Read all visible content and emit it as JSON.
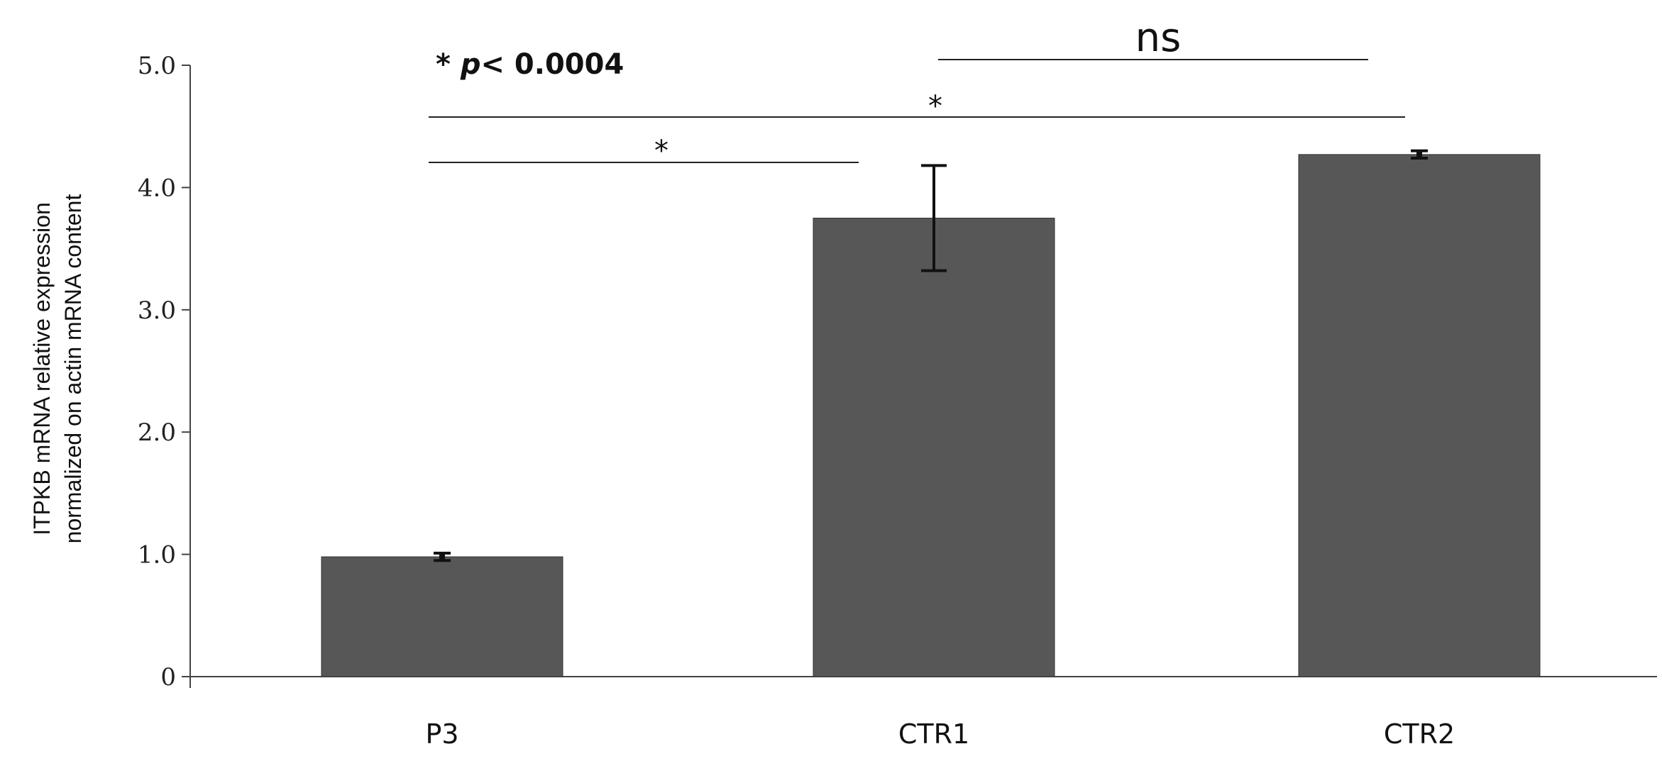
{
  "chart_data": {
    "type": "bar",
    "categories": [
      "P3",
      "CTR1",
      "CTR2"
    ],
    "values": [
      0.98,
      3.75,
      4.27
    ],
    "errors": [
      0.03,
      0.43,
      0.03
    ],
    "ylabel_lines": [
      "ITPKB mRNA relative expression",
      "normalized on actin mRNA content"
    ],
    "ylim": [
      0,
      5
    ],
    "yticks": [
      {
        "value": 0,
        "label": "0"
      },
      {
        "value": 1,
        "label": "1.0"
      },
      {
        "value": 2,
        "label": "2.0"
      },
      {
        "value": 3,
        "label": "3.0"
      },
      {
        "value": 4,
        "label": "4.0"
      },
      {
        "value": 5,
        "label": "5.0"
      }
    ],
    "grid": false,
    "bar_color": "#575757",
    "pvalue_note": {
      "star": "* ",
      "p": "p",
      "rest": "< 0.0004"
    },
    "comparisons": [
      {
        "from": 0,
        "to": 1,
        "label": "*"
      },
      {
        "from": 0,
        "to": 2,
        "label": "*"
      },
      {
        "from": 1,
        "to": 2,
        "label": "ns"
      }
    ]
  }
}
